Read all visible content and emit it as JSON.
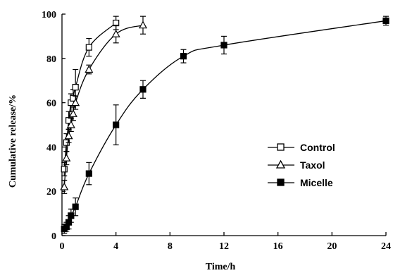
{
  "chart_data": {
    "type": "line",
    "xlabel": "Time/h",
    "ylabel": "Cumulative release/%",
    "xlim": [
      0,
      24
    ],
    "ylim": [
      0,
      100
    ],
    "xticks": [
      0,
      4,
      8,
      12,
      16,
      20,
      24
    ],
    "yticks": [
      0,
      20,
      40,
      60,
      80,
      100
    ],
    "grid": false,
    "legend_position": "center-right",
    "series": [
      {
        "name": "Control",
        "marker": "open-square",
        "x": [
          0.17,
          0.33,
          0.5,
          0.67,
          0.83,
          1.0,
          2.0,
          4.0
        ],
        "y": [
          30,
          42,
          52,
          60,
          62,
          67,
          85,
          96
        ],
        "error": [
          3,
          4,
          4,
          4,
          4,
          8,
          4,
          3
        ]
      },
      {
        "name": "Taxol",
        "marker": "open-triangle",
        "x": [
          0.17,
          0.33,
          0.5,
          0.67,
          0.83,
          1.0,
          2.0,
          4.0,
          6.0
        ],
        "y": [
          22,
          35,
          45,
          50,
          55,
          60,
          75,
          91,
          95
        ],
        "error": [
          3,
          3,
          3,
          3,
          3,
          3,
          2,
          4,
          4
        ]
      },
      {
        "name": "Micelle",
        "marker": "filled-square",
        "x": [
          0.17,
          0.33,
          0.5,
          0.67,
          1.0,
          2.0,
          4.0,
          6.0,
          9.0,
          12.0,
          24.0
        ],
        "y": [
          3,
          4,
          6,
          9,
          13,
          28,
          50,
          66,
          81,
          86,
          97
        ],
        "error": [
          2,
          2,
          3,
          3,
          4,
          5,
          9,
          4,
          3,
          4,
          2
        ]
      }
    ]
  }
}
